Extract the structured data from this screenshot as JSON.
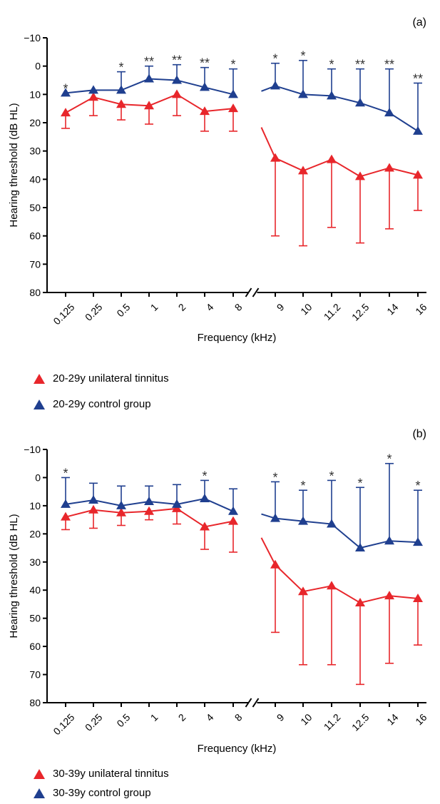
{
  "chart_data": [
    {
      "type": "line",
      "panel_label": "(a)",
      "categories": [
        "0.125",
        "0.25",
        "0.5",
        "1",
        "2",
        "4",
        "8",
        "9",
        "10",
        "11.2",
        "12.5",
        "14",
        "16"
      ],
      "xlabel": "Frequency (kHz)",
      "ylabel": "Hearing threshold (dB HL)",
      "ylim": [
        -10,
        80
      ],
      "y_inverted": true,
      "y_ticks": [
        "-10",
        "0",
        "10",
        "20",
        "30",
        "40",
        "50",
        "60",
        "70",
        "80"
      ],
      "axis_break_after": "8",
      "series": [
        {
          "name": "20-29y unilateral tinnitus",
          "color": "#e8262b",
          "values": [
            16.5,
            11,
            13.5,
            14,
            10,
            16,
            15,
            32.5,
            37,
            33,
            39,
            36,
            38.5
          ],
          "sd": [
            5.5,
            6.5,
            5.5,
            6.5,
            7.5,
            7,
            8,
            27.5,
            26.5,
            24,
            23.5,
            21.5,
            12.5
          ]
        },
        {
          "name": "20-29y control group",
          "color": "#1f3f8f",
          "values": [
            9.5,
            8.5,
            8.5,
            4.5,
            5,
            7.5,
            10,
            7,
            10,
            10.5,
            13,
            16.5,
            23
          ],
          "sd": [
            0,
            0,
            6.5,
            4.5,
            5.5,
            7,
            9,
            8,
            12,
            9.5,
            12,
            15.5,
            17
          ]
        }
      ],
      "significance": [
        "*",
        "",
        "*",
        "**",
        "**",
        "**",
        "*",
        "*",
        "*",
        "*",
        "**",
        "**",
        "**"
      ]
    },
    {
      "type": "line",
      "panel_label": "(b)",
      "categories": [
        "0.125",
        "0.25",
        "0.5",
        "1",
        "2",
        "4",
        "8",
        "9",
        "10",
        "11.2",
        "12.5",
        "14",
        "16"
      ],
      "xlabel": "Frequency (kHz)",
      "ylabel": "Hearing threshold (dB HL)",
      "ylim": [
        -10,
        80
      ],
      "y_inverted": true,
      "y_ticks": [
        "-10",
        "0",
        "10",
        "20",
        "30",
        "40",
        "50",
        "60",
        "70",
        "80"
      ],
      "axis_break_after": "8",
      "series": [
        {
          "name": "30-39y unilateral tinnitus",
          "color": "#e8262b",
          "values": [
            14,
            11.5,
            12.5,
            12,
            11,
            17.5,
            15.5,
            31,
            40.5,
            38.5,
            44.5,
            42,
            43
          ],
          "sd": [
            4.5,
            6.5,
            4.5,
            3,
            5.5,
            8,
            11,
            24,
            26,
            28,
            29,
            24,
            16.5
          ]
        },
        {
          "name": "30-39y control group",
          "color": "#1f3f8f",
          "values": [
            9.5,
            8,
            10,
            8.5,
            9.5,
            7.5,
            12,
            14.5,
            15.5,
            16.5,
            25,
            22.5,
            23
          ],
          "sd": [
            9.5,
            6,
            7,
            5.5,
            7,
            6.5,
            8,
            13,
            11,
            15.5,
            21.5,
            27.5,
            18.5
          ]
        }
      ],
      "significance": [
        "*",
        "",
        "",
        "",
        "",
        "*",
        "",
        "*",
        "*",
        "*",
        "*",
        "*",
        "*"
      ]
    }
  ]
}
